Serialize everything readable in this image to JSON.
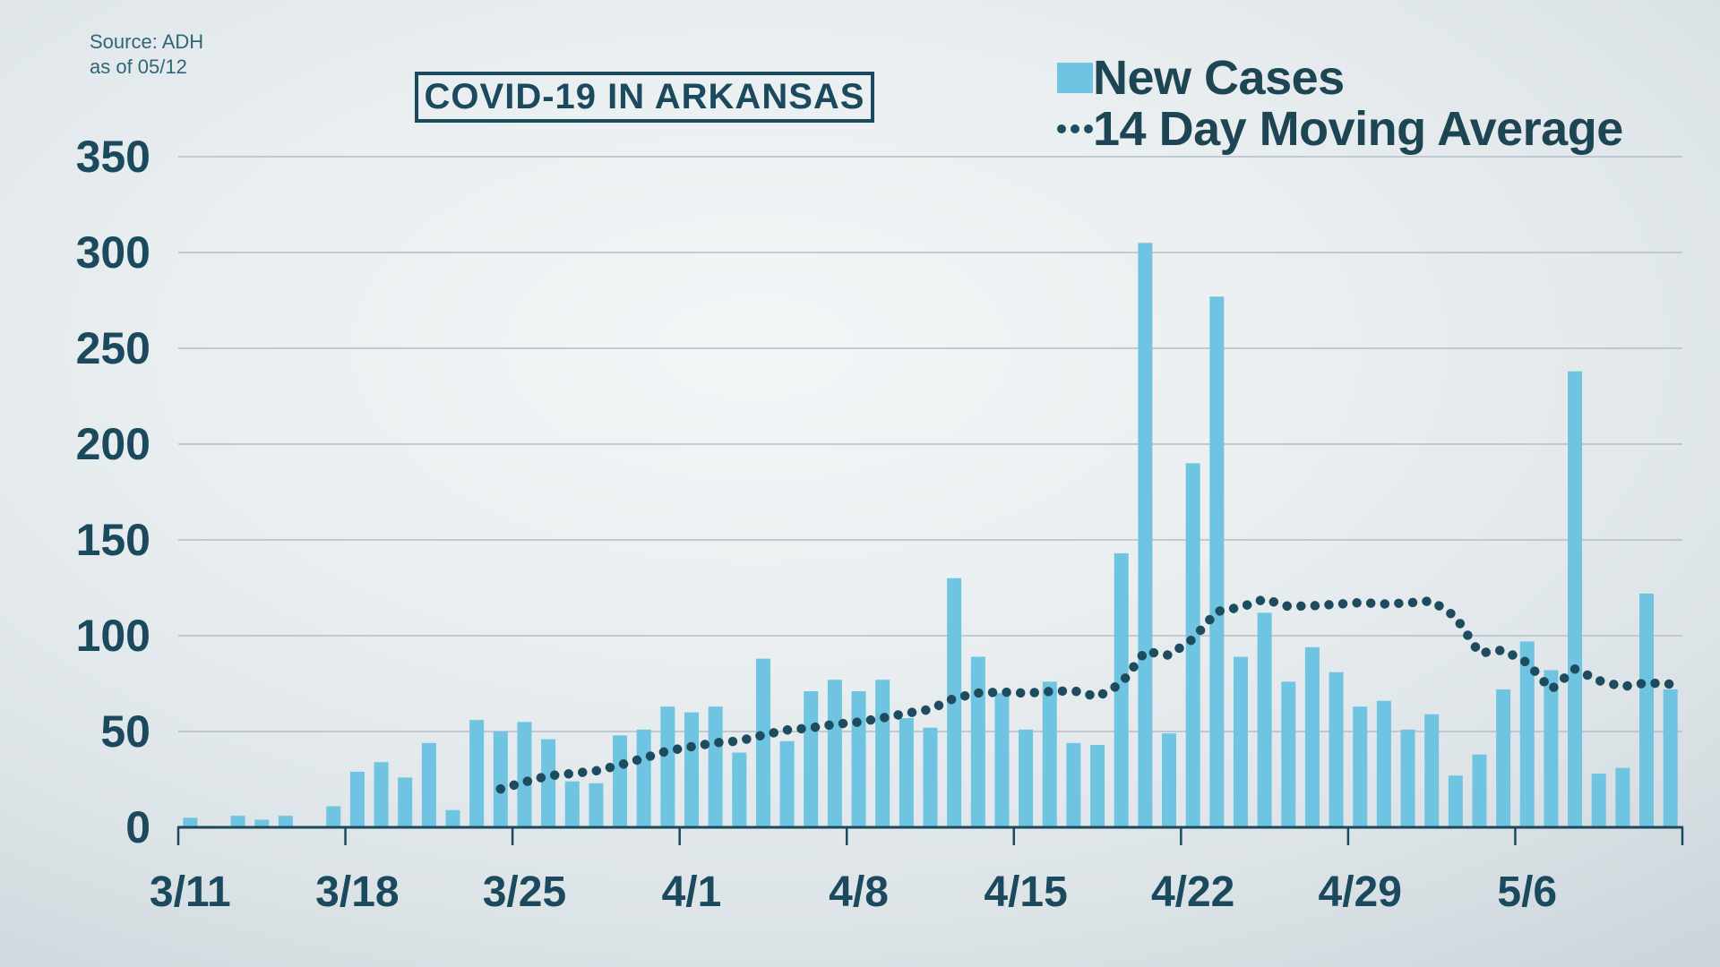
{
  "header": {
    "title": "COVID-19 IN ARKANSAS"
  },
  "source": {
    "line1": "Source: ADH",
    "line2": "as of 05/12"
  },
  "legend": {
    "new_cases": "New Cases",
    "moving_average": "14 Day Moving Average"
  },
  "colors": {
    "bar": "#6fc4e1",
    "moving_average_line": "#1e4c5f",
    "gridline": "#b3bec6",
    "axis": "#1b4a5e",
    "text": "#1b4a5e",
    "source_text": "#2f6678"
  },
  "chart_data": {
    "type": "bar",
    "title": "COVID-19 IN ARKANSAS",
    "xlabel": "",
    "ylabel": "",
    "ylim": [
      0,
      350
    ],
    "y_step": 50,
    "grid": true,
    "legend_position": "top-right",
    "categories": [
      "3/11",
      "3/12",
      "3/13",
      "3/14",
      "3/15",
      "3/16",
      "3/17",
      "3/18",
      "3/19",
      "3/20",
      "3/21",
      "3/22",
      "3/23",
      "3/24",
      "3/25",
      "3/26",
      "3/27",
      "3/28",
      "3/29",
      "3/30",
      "3/31",
      "4/1",
      "4/2",
      "4/3",
      "4/4",
      "4/5",
      "4/6",
      "4/7",
      "4/8",
      "4/9",
      "4/10",
      "4/11",
      "4/12",
      "4/13",
      "4/14",
      "4/15",
      "4/16",
      "4/17",
      "4/18",
      "4/19",
      "4/20",
      "4/21",
      "4/22",
      "4/23",
      "4/24",
      "4/25",
      "4/26",
      "4/27",
      "4/28",
      "4/29",
      "4/30",
      "5/1",
      "5/2",
      "5/3",
      "5/4",
      "5/5",
      "5/6",
      "5/7",
      "5/8",
      "5/9",
      "5/10",
      "5/11",
      "5/12"
    ],
    "x_tick_labels": [
      "3/11",
      "3/18",
      "3/25",
      "4/1",
      "4/8",
      "4/15",
      "4/22",
      "4/29",
      "5/6"
    ],
    "series": [
      {
        "name": "New Cases",
        "type": "bar",
        "values": [
          5,
          0,
          6,
          4,
          6,
          0,
          11,
          29,
          34,
          26,
          44,
          9,
          56,
          50,
          55,
          46,
          24,
          23,
          48,
          51,
          63,
          60,
          63,
          39,
          88,
          45,
          71,
          77,
          71,
          77,
          57,
          52,
          130,
          89,
          70,
          51,
          76,
          44,
          43,
          143,
          305,
          49,
          190,
          277,
          89,
          112,
          76,
          94,
          81,
          63,
          66,
          51,
          59,
          27,
          38,
          72,
          97,
          82,
          238,
          28,
          31,
          122,
          72
        ]
      },
      {
        "name": "14 Day Moving Average",
        "type": "line",
        "values": [
          null,
          null,
          null,
          null,
          null,
          null,
          null,
          null,
          null,
          null,
          null,
          null,
          null,
          20,
          23.6,
          26.9,
          28.1,
          29.5,
          32.5,
          36.1,
          39.9,
          42.1,
          44.1,
          45.1,
          48.2,
          50.8,
          51.9,
          53.8,
          54.9,
          57.1,
          59.5,
          61.6,
          67.4,
          70.1,
          70.6,
          70,
          70.9,
          71.3,
          68.1,
          75.1,
          91.8,
          89.8,
          98.3,
          112.6,
          114.9,
          119.1,
          115.3,
          115.6,
          116.4,
          117.3,
          116.6,
          117.1,
          118.2,
          109.9,
          90.9,
          92.5,
          85.9,
          71.9,
          82.6,
          76.6,
          73.4,
          75.4,
          74.7
        ]
      }
    ]
  }
}
